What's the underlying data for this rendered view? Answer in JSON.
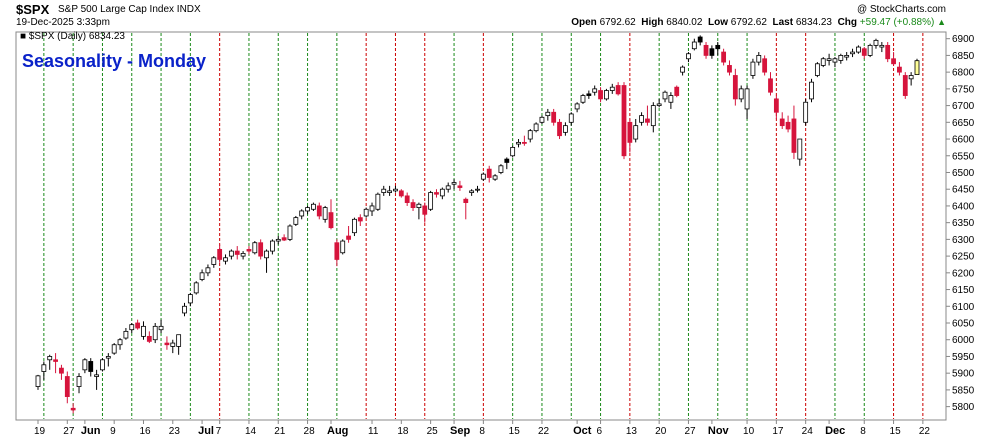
{
  "header": {
    "symbol": "$SPX",
    "description": "S&P 500 Large Cap Index INDX",
    "timestamp": "19-Dec-2025 3:33pm",
    "brand": "@ StockCharts.com",
    "open_label": "Open",
    "open": "6792.62",
    "high_label": "High",
    "high": "6840.02",
    "low_label": "Low",
    "low": "6792.62",
    "last_label": "Last",
    "last": "6834.23",
    "chg_label": "Chg",
    "chg": "+59.47 (+0.88%)",
    "chg_arrow": "▲"
  },
  "legend_text": "■ $SPX (Daily) 6834.23",
  "overlay_title": "Seasonality - Monday",
  "colors": {
    "up": "#ffffff",
    "down": "#d6143c",
    "black": "#000000",
    "today": "#ffff99",
    "green_line": "#1a8a1a",
    "red_line": "#cc0000",
    "title": "#0a22c9"
  },
  "chart_data": {
    "type": "candlestick",
    "title": "Seasonality - Monday",
    "ylim": [
      5760,
      6920
    ],
    "yticks": [
      5800,
      5850,
      5900,
      5950,
      6000,
      6050,
      6100,
      6150,
      6200,
      6250,
      6300,
      6350,
      6400,
      6450,
      6500,
      6550,
      6600,
      6650,
      6700,
      6750,
      6800,
      6850,
      6900
    ],
    "x_tick_labels": [
      {
        "label": "19",
        "d": 0
      },
      {
        "label": "27",
        "d": 5
      },
      {
        "label": "Jun",
        "d": 8
      },
      {
        "label": "9",
        "d": 13
      },
      {
        "label": "16",
        "d": 18
      },
      {
        "label": "23",
        "d": 23
      },
      {
        "label": "Jul",
        "d": 28
      },
      {
        "label": "7",
        "d": 31
      },
      {
        "label": "14",
        "d": 36
      },
      {
        "label": "21",
        "d": 41
      },
      {
        "label": "28",
        "d": 46
      },
      {
        "label": "Aug",
        "d": 50
      },
      {
        "label": "11",
        "d": 57
      },
      {
        "label": "18",
        "d": 62
      },
      {
        "label": "25",
        "d": 67
      },
      {
        "label": "Sep",
        "d": 71
      },
      {
        "label": "8",
        "d": 76
      },
      {
        "label": "15",
        "d": 81
      },
      {
        "label": "22",
        "d": 86
      },
      {
        "label": "Oct",
        "d": 92
      },
      {
        "label": "6",
        "d": 96
      },
      {
        "label": "13",
        "d": 101
      },
      {
        "label": "20",
        "d": 106
      },
      {
        "label": "27",
        "d": 111
      },
      {
        "label": "Nov",
        "d": 115
      },
      {
        "label": "10",
        "d": 121
      },
      {
        "label": "17",
        "d": 126
      },
      {
        "label": "24",
        "d": 131
      },
      {
        "label": "Dec",
        "d": 135
      },
      {
        "label": "8",
        "d": 141
      },
      {
        "label": "15",
        "d": 146
      },
      {
        "label": "22",
        "d": 151
      }
    ],
    "monday_lines": [
      {
        "d": 1,
        "c": "g"
      },
      {
        "d": 6,
        "c": "g"
      },
      {
        "d": 11,
        "c": "g"
      },
      {
        "d": 16,
        "c": "g"
      },
      {
        "d": 21,
        "c": "g"
      },
      {
        "d": 26,
        "c": "g"
      },
      {
        "d": 31,
        "c": "r"
      },
      {
        "d": 36,
        "c": "g"
      },
      {
        "d": 41,
        "c": "g"
      },
      {
        "d": 46,
        "c": "g"
      },
      {
        "d": 51,
        "c": "g"
      },
      {
        "d": 56,
        "c": "r"
      },
      {
        "d": 61,
        "c": "r"
      },
      {
        "d": 66,
        "c": "r"
      },
      {
        "d": 71,
        "c": "g"
      },
      {
        "d": 76,
        "c": "r"
      },
      {
        "d": 81,
        "c": "g"
      },
      {
        "d": 86,
        "c": "g"
      },
      {
        "d": 91,
        "c": "g"
      },
      {
        "d": 96,
        "c": "g"
      },
      {
        "d": 101,
        "c": "r"
      },
      {
        "d": 106,
        "c": "g"
      },
      {
        "d": 111,
        "c": "g"
      },
      {
        "d": 116,
        "c": "g"
      },
      {
        "d": 121,
        "c": "g"
      },
      {
        "d": 126,
        "c": "r"
      },
      {
        "d": 131,
        "c": "r"
      },
      {
        "d": 136,
        "c": "g"
      },
      {
        "d": 141,
        "c": "g"
      },
      {
        "d": 146,
        "c": "r"
      },
      {
        "d": 151,
        "c": "r"
      }
    ],
    "ohlc_fields": [
      "open",
      "high",
      "low",
      "close",
      "color"
    ],
    "candles": [
      [
        5860,
        5895,
        5850,
        5892,
        "u"
      ],
      [
        5905,
        5935,
        5880,
        5925,
        "u"
      ],
      [
        5940,
        5955,
        5910,
        5950,
        "u"
      ],
      [
        5940,
        5960,
        5900,
        5935,
        "d"
      ],
      [
        5915,
        5925,
        5880,
        5900,
        "d"
      ],
      [
        5890,
        5905,
        5810,
        5830,
        "d"
      ],
      [
        5795,
        5810,
        5780,
        5790,
        "d"
      ],
      [
        5860,
        5900,
        5840,
        5890,
        "u"
      ],
      [
        5910,
        5945,
        5900,
        5940,
        "u"
      ],
      [
        5935,
        5945,
        5890,
        5905,
        "k"
      ],
      [
        5890,
        5910,
        5850,
        5895,
        "u"
      ],
      [
        5910,
        5945,
        5905,
        5940,
        "u"
      ],
      [
        5945,
        5960,
        5920,
        5950,
        "u"
      ],
      [
        5960,
        5990,
        5955,
        5985,
        "u"
      ],
      [
        5985,
        6005,
        5970,
        6000,
        "u"
      ],
      [
        6005,
        6035,
        6000,
        6025,
        "u"
      ],
      [
        6030,
        6050,
        6020,
        6045,
        "u"
      ],
      [
        6050,
        6060,
        6030,
        6035,
        "d"
      ],
      [
        6040,
        6055,
        6000,
        6010,
        "u"
      ],
      [
        6010,
        6025,
        5990,
        5995,
        "d"
      ],
      [
        6000,
        6050,
        5990,
        6040,
        "u"
      ],
      [
        6040,
        6060,
        6020,
        6030,
        "u"
      ],
      [
        5990,
        6010,
        5970,
        5985,
        "d"
      ],
      [
        5980,
        6000,
        5960,
        5990,
        "u"
      ],
      [
        5980,
        6010,
        5955,
        6015,
        "u"
      ],
      [
        6080,
        6110,
        6070,
        6100,
        "u"
      ],
      [
        6110,
        6140,
        6100,
        6135,
        "u"
      ],
      [
        6140,
        6175,
        6135,
        6170,
        "u"
      ],
      [
        6180,
        6210,
        6175,
        6200,
        "u"
      ],
      [
        6200,
        6225,
        6190,
        6215,
        "u"
      ],
      [
        6225,
        6250,
        6215,
        6245,
        "u"
      ],
      [
        6270,
        6285,
        6230,
        6240,
        "d"
      ],
      [
        6235,
        6255,
        6225,
        6245,
        "u"
      ],
      [
        6250,
        6270,
        6240,
        6265,
        "u"
      ],
      [
        6265,
        6280,
        6240,
        6255,
        "d"
      ],
      [
        6250,
        6265,
        6240,
        6258,
        "u"
      ],
      [
        6270,
        6280,
        6255,
        6265,
        "d"
      ],
      [
        6260,
        6295,
        6255,
        6290,
        "u"
      ],
      [
        6290,
        6300,
        6240,
        6250,
        "d"
      ],
      [
        6245,
        6270,
        6200,
        6265,
        "u"
      ],
      [
        6265,
        6300,
        6255,
        6295,
        "u"
      ],
      [
        6295,
        6310,
        6285,
        6300,
        "u"
      ],
      [
        6305,
        6315,
        6295,
        6298,
        "d"
      ],
      [
        6300,
        6345,
        6295,
        6340,
        "u"
      ],
      [
        6345,
        6370,
        6340,
        6365,
        "u"
      ],
      [
        6370,
        6390,
        6360,
        6385,
        "u"
      ],
      [
        6385,
        6400,
        6375,
        6395,
        "u"
      ],
      [
        6390,
        6410,
        6385,
        6405,
        "u"
      ],
      [
        6400,
        6410,
        6360,
        6370,
        "d"
      ],
      [
        6360,
        6400,
        6350,
        6395,
        "u"
      ],
      [
        6380,
        6420,
        6330,
        6335,
        "d"
      ],
      [
        6290,
        6300,
        6220,
        6240,
        "d"
      ],
      [
        6260,
        6300,
        6255,
        6295,
        "u"
      ],
      [
        6300,
        6340,
        6290,
        6310,
        "d"
      ],
      [
        6320,
        6365,
        6310,
        6360,
        "u"
      ],
      [
        6355,
        6375,
        6340,
        6365,
        "d"
      ],
      [
        6370,
        6395,
        6365,
        6390,
        "u"
      ],
      [
        6400,
        6410,
        6370,
        6385,
        "u"
      ],
      [
        6390,
        6440,
        6385,
        6435,
        "u"
      ],
      [
        6440,
        6460,
        6430,
        6450,
        "u"
      ],
      [
        6445,
        6460,
        6430,
        6440,
        "u"
      ],
      [
        6450,
        6460,
        6440,
        6445,
        "u"
      ],
      [
        6445,
        6450,
        6425,
        6430,
        "d"
      ],
      [
        6430,
        6440,
        6400,
        6410,
        "d"
      ],
      [
        6410,
        6420,
        6385,
        6395,
        "d"
      ],
      [
        6395,
        6410,
        6360,
        6405,
        "u"
      ],
      [
        6400,
        6410,
        6350,
        6375,
        "d"
      ],
      [
        6390,
        6445,
        6385,
        6440,
        "u"
      ],
      [
        6440,
        6450,
        6425,
        6435,
        "d"
      ],
      [
        6430,
        6455,
        6420,
        6450,
        "u"
      ],
      [
        6450,
        6470,
        6440,
        6460,
        "u"
      ],
      [
        6470,
        6480,
        6450,
        6465,
        "u"
      ],
      [
        6460,
        6475,
        6445,
        6455,
        "d"
      ],
      [
        6420,
        6425,
        6360,
        6410,
        "d"
      ],
      [
        6440,
        6450,
        6430,
        6445,
        "u"
      ],
      [
        6450,
        6460,
        6440,
        6450,
        "u"
      ],
      [
        6480,
        6500,
        6475,
        6495,
        "u"
      ],
      [
        6510,
        6520,
        6470,
        6485,
        "d"
      ],
      [
        6480,
        6495,
        6475,
        6490,
        "u"
      ],
      [
        6500,
        6525,
        6495,
        6520,
        "u"
      ],
      [
        6530,
        6545,
        6510,
        6540,
        "k"
      ],
      [
        6550,
        6580,
        6545,
        6575,
        "u"
      ],
      [
        6585,
        6600,
        6575,
        6590,
        "u"
      ],
      [
        6590,
        6610,
        6580,
        6590,
        "d"
      ],
      [
        6600,
        6630,
        6590,
        6625,
        "u"
      ],
      [
        6625,
        6650,
        6620,
        6645,
        "u"
      ],
      [
        6650,
        6670,
        6645,
        6665,
        "u"
      ],
      [
        6670,
        6690,
        6655,
        6680,
        "u"
      ],
      [
        6680,
        6690,
        6640,
        6650,
        "d"
      ],
      [
        6650,
        6660,
        6600,
        6610,
        "d"
      ],
      [
        6620,
        6650,
        6610,
        6640,
        "u"
      ],
      [
        6650,
        6680,
        6640,
        6675,
        "u"
      ],
      [
        6690,
        6710,
        6680,
        6705,
        "u"
      ],
      [
        6710,
        6735,
        6705,
        6730,
        "u"
      ],
      [
        6730,
        6745,
        6720,
        6735,
        "k"
      ],
      [
        6740,
        6760,
        6730,
        6750,
        "u"
      ],
      [
        6745,
        6755,
        6710,
        6720,
        "d"
      ],
      [
        6720,
        6750,
        6715,
        6745,
        "u"
      ],
      [
        6745,
        6765,
        6735,
        6755,
        "u"
      ],
      [
        6760,
        6770,
        6730,
        6735,
        "d"
      ],
      [
        6760,
        6770,
        6540,
        6550,
        "d"
      ],
      [
        6590,
        6660,
        6560,
        6650,
        "d"
      ],
      [
        6600,
        6660,
        6590,
        6640,
        "u"
      ],
      [
        6650,
        6680,
        6640,
        6670,
        "u"
      ],
      [
        6660,
        6700,
        6640,
        6650,
        "d"
      ],
      [
        6640,
        6710,
        6620,
        6700,
        "u"
      ],
      [
        6700,
        6720,
        6695,
        6705,
        "u"
      ],
      [
        6720,
        6745,
        6710,
        6740,
        "u"
      ],
      [
        6710,
        6740,
        6690,
        6730,
        "u"
      ],
      [
        6730,
        6760,
        6725,
        6755,
        "d"
      ],
      [
        6800,
        6820,
        6790,
        6815,
        "u"
      ],
      [
        6840,
        6860,
        6830,
        6855,
        "u"
      ],
      [
        6870,
        6900,
        6865,
        6890,
        "u"
      ],
      [
        6890,
        6910,
        6880,
        6905,
        "k"
      ],
      [
        6880,
        6890,
        6840,
        6850,
        "d"
      ],
      [
        6850,
        6880,
        6840,
        6870,
        "k"
      ],
      [
        6870,
        6890,
        6850,
        6880,
        "k"
      ],
      [
        6860,
        6870,
        6820,
        6830,
        "d"
      ],
      [
        6820,
        6835,
        6790,
        6800,
        "d"
      ],
      [
        6790,
        6810,
        6700,
        6720,
        "d"
      ],
      [
        6720,
        6760,
        6710,
        6750,
        "u"
      ],
      [
        6750,
        6760,
        6660,
        6690,
        "u"
      ],
      [
        6790,
        6840,
        6780,
        6830,
        "u"
      ],
      [
        6830,
        6860,
        6820,
        6850,
        "u"
      ],
      [
        6840,
        6850,
        6790,
        6800,
        "d"
      ],
      [
        6780,
        6800,
        6730,
        6740,
        "d"
      ],
      [
        6720,
        6730,
        6660,
        6680,
        "d"
      ],
      [
        6660,
        6680,
        6630,
        6640,
        "d"
      ],
      [
        6650,
        6670,
        6620,
        6630,
        "d"
      ],
      [
        6660,
        6700,
        6540,
        6560,
        "d"
      ],
      [
        6540,
        6600,
        6520,
        6600,
        "u"
      ],
      [
        6650,
        6720,
        6640,
        6710,
        "u"
      ],
      [
        6720,
        6780,
        6710,
        6770,
        "u"
      ],
      [
        6790,
        6830,
        6785,
        6825,
        "u"
      ],
      [
        6820,
        6845,
        6815,
        6840,
        "u"
      ],
      [
        6840,
        6855,
        6820,
        6835,
        "u"
      ],
      [
        6830,
        6845,
        6815,
        6840,
        "u"
      ],
      [
        6835,
        6855,
        6825,
        6850,
        "u"
      ],
      [
        6850,
        6860,
        6835,
        6845,
        "u"
      ],
      [
        6855,
        6870,
        6845,
        6860,
        "u"
      ],
      [
        6860,
        6880,
        6855,
        6875,
        "u"
      ],
      [
        6870,
        6875,
        6840,
        6850,
        "d"
      ],
      [
        6850,
        6885,
        6845,
        6880,
        "u"
      ],
      [
        6880,
        6900,
        6870,
        6895,
        "u"
      ],
      [
        6875,
        6890,
        6860,
        6880,
        "u"
      ],
      [
        6880,
        6890,
        6830,
        6840,
        "d"
      ],
      [
        6840,
        6860,
        6820,
        6825,
        "d"
      ],
      [
        6815,
        6830,
        6790,
        6800,
        "d"
      ],
      [
        6790,
        6800,
        6720,
        6730,
        "d"
      ],
      [
        6780,
        6800,
        6760,
        6790,
        "u"
      ],
      [
        6792.62,
        6840.02,
        6792.62,
        6834.23,
        "t"
      ]
    ]
  }
}
